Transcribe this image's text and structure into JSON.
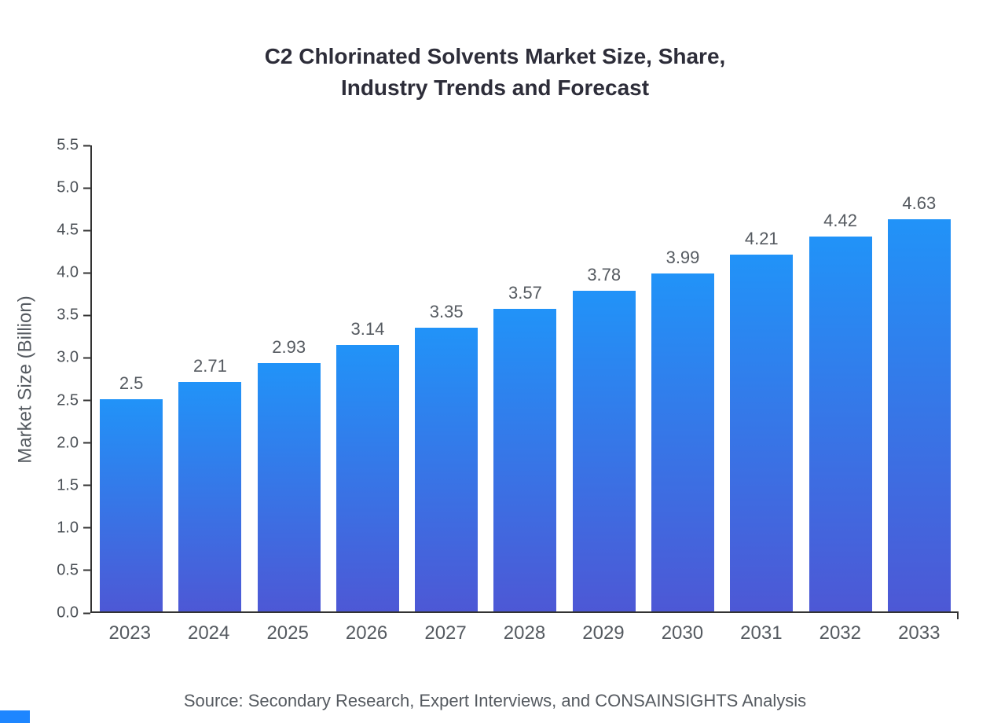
{
  "title": "C2 Chlorinated Solvents Market Size, Share,\nIndustry Trends and Forecast",
  "source": "Source: Secondary Research, Expert Interviews, and CONSAINSIGHTS Analysis",
  "chart_data": {
    "type": "bar",
    "title": "C2 Chlorinated Solvents Market Size, Share, Industry Trends and Forecast",
    "categories": [
      "2023",
      "2024",
      "2025",
      "2026",
      "2027",
      "2028",
      "2029",
      "2030",
      "2031",
      "2032",
      "2033"
    ],
    "values": [
      2.5,
      2.71,
      2.93,
      3.14,
      3.35,
      3.57,
      3.78,
      3.99,
      4.21,
      4.42,
      4.63
    ],
    "value_labels": [
      "2.5",
      "2.71",
      "2.93",
      "3.14",
      "3.35",
      "3.57",
      "3.78",
      "3.99",
      "4.21",
      "4.42",
      "4.63"
    ],
    "xlabel": "",
    "ylabel": "Market Size (Billion)",
    "ylim": [
      0,
      5.5
    ],
    "ytick_step": 0.5,
    "yticks": [
      "0.0",
      "0.5",
      "1.0",
      "1.5",
      "2.0",
      "2.5",
      "3.0",
      "3.5",
      "4.0",
      "4.5",
      "5.0",
      "5.5"
    ],
    "grid": false,
    "legend": "none",
    "colors": {
      "bar_gradient_top": "#2193f8",
      "bar_gradient_bottom": "#4d58d5",
      "axis": "#333333",
      "tick_label": "#4a4f55",
      "value_label": "#555a60",
      "title": "#2d2d39",
      "source": "#555a60",
      "accent": "#1e86ff"
    }
  }
}
